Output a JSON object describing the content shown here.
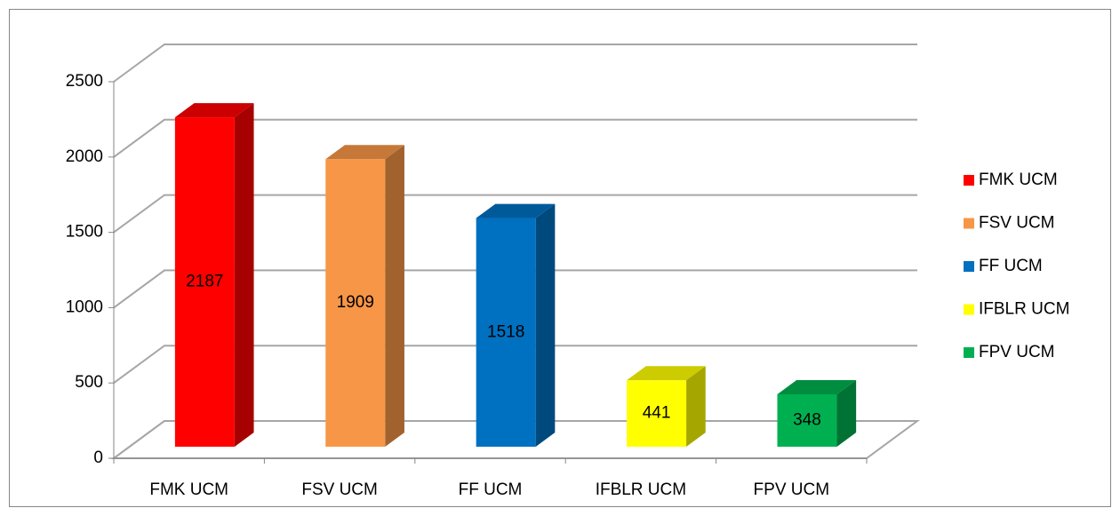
{
  "chart_data": {
    "type": "bar3d",
    "categories": [
      "FMK UCM",
      "FSV UCM",
      "FF UCM",
      "IFBLR UCM",
      "FPV UCM"
    ],
    "values": [
      2187,
      1909,
      1518,
      441,
      348
    ],
    "colors": [
      "#ff0000",
      "#f79646",
      "#0070c0",
      "#ffff00",
      "#00b050"
    ],
    "ylim": [
      0,
      2500
    ],
    "yticks": [
      0,
      500,
      1000,
      1500,
      2000,
      2500
    ],
    "grid": true,
    "legend": "right"
  }
}
